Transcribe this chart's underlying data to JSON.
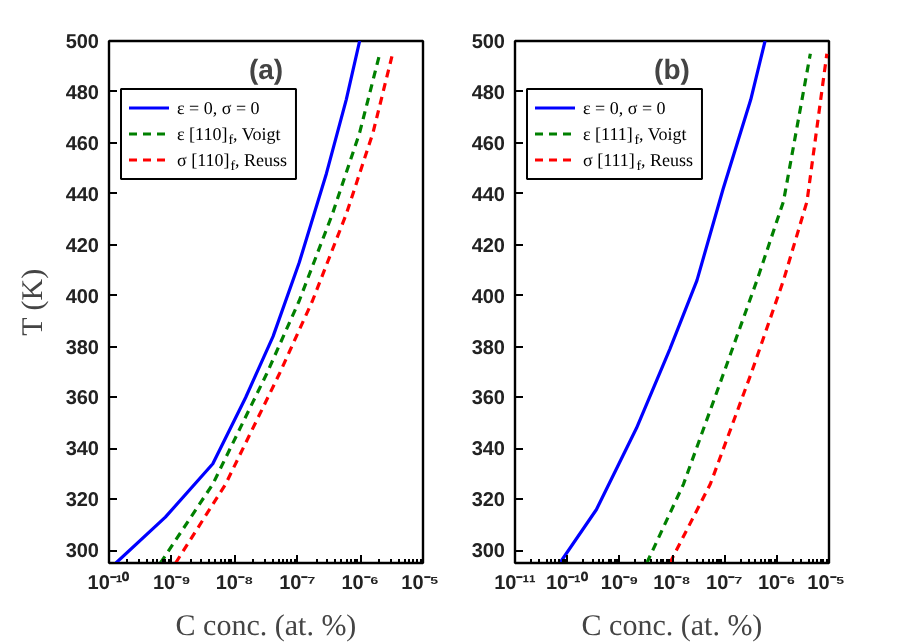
{
  "chart_data": [
    {
      "type": "line",
      "title": "(a)",
      "xlabel": "C conc. (at. %)",
      "ylabel": "T (K)",
      "log": "x",
      "grid": false,
      "legend": "top",
      "xlim": [
        1e-10,
        1e-05
      ],
      "ylim": [
        295,
        500
      ],
      "xticks": [
        {
          "value": 1e-10,
          "label": "10⁻¹⁰"
        },
        {
          "value": 1e-09,
          "label": "10⁻⁹"
        },
        {
          "value": 1e-08,
          "label": "10⁻⁸"
        },
        {
          "value": 1e-07,
          "label": "10⁻⁷"
        },
        {
          "value": 1e-06,
          "label": "10⁻⁶"
        },
        {
          "value": 1e-05,
          "label": "10⁻⁵"
        }
      ],
      "yticks": [
        300,
        320,
        340,
        360,
        380,
        400,
        420,
        440,
        460,
        480,
        500
      ],
      "series": [
        {
          "name": "ε = 0, σ = 0",
          "color": "#0000ff",
          "line_style": "solid",
          "x": [
            1.29e-10,
            7.9e-10,
            4.5e-09,
            1.5e-08,
            4.1e-08,
            1.07e-07,
            2.9e-07,
            6e-07,
            9.8e-07
          ],
          "values": [
            295,
            313,
            334,
            360,
            384,
            413,
            448,
            477,
            500
          ]
        },
        {
          "name": "ε [110]$_{f}$, Voigt",
          "color": "#008000",
          "line_style": "dashed",
          "x": [
            6.6e-10,
            4.5e-09,
            3.2e-08,
            1.07e-07,
            3.6e-07,
            9.8e-07,
            2e-06
          ],
          "values": [
            295,
            326,
            369,
            398,
            432,
            464,
            494
          ]
        },
        {
          "name": "σ [110]$_{f}$, Reuss",
          "color": "#ff0000",
          "line_style": "dashed",
          "x": [
            1.15e-09,
            7.2e-09,
            5.1e-08,
            1.74e-07,
            6e-07,
            1.6e-06,
            3.2e-06
          ],
          "values": [
            295,
            326,
            369,
            398,
            432,
            464,
            494
          ]
        }
      ]
    },
    {
      "type": "line",
      "title": "(b)",
      "xlabel": "C conc. (at. %)",
      "log": "x",
      "grid": false,
      "legend": "top",
      "xlim": [
        1e-11,
        1e-05
      ],
      "ylim": [
        295,
        500
      ],
      "xticks": [
        {
          "value": 1e-11,
          "label": "10⁻¹¹"
        },
        {
          "value": 1e-10,
          "label": "10⁻¹⁰"
        },
        {
          "value": 1e-09,
          "label": "10⁻⁹"
        },
        {
          "value": 1e-08,
          "label": "10⁻⁸"
        },
        {
          "value": 1e-07,
          "label": "10⁻⁷"
        },
        {
          "value": 1e-06,
          "label": "10⁻⁶"
        },
        {
          "value": 1e-05,
          "label": "10⁻⁵"
        }
      ],
      "yticks": [
        300,
        320,
        340,
        360,
        380,
        400,
        420,
        440,
        460,
        480,
        500
      ],
      "series": [
        {
          "name": "ε = 0, σ = 0",
          "color": "#0000ff",
          "line_style": "solid",
          "x": [
            7.2e-11,
            3.6e-10,
            2.1e-09,
            9.1e-09,
            3e-08,
            9.5e-08,
            3.2e-07,
            6e-07
          ],
          "values": [
            295,
            316,
            348,
            379,
            406,
            442,
            477,
            500
          ]
        },
        {
          "name": "ε [111]$_{f}$, Voigt",
          "color": "#008000",
          "line_style": "dashed",
          "x": [
            3.3e-09,
            1.66e-08,
            9.5e-08,
            4.2e-07,
            1.35e-06,
            4.4e-06
          ],
          "values": [
            295,
            326,
            369,
            406,
            437,
            495
          ]
        },
        {
          "name": "σ [111]$_{f}$, Reuss",
          "color": "#ff0000",
          "line_style": "dashed",
          "x": [
            9.1e-09,
            5.4e-08,
            3.2e-07,
            1.35e-06,
            3.8e-06,
            9.1e-06
          ],
          "values": [
            295,
            326,
            369,
            406,
            437,
            495
          ]
        }
      ]
    }
  ]
}
